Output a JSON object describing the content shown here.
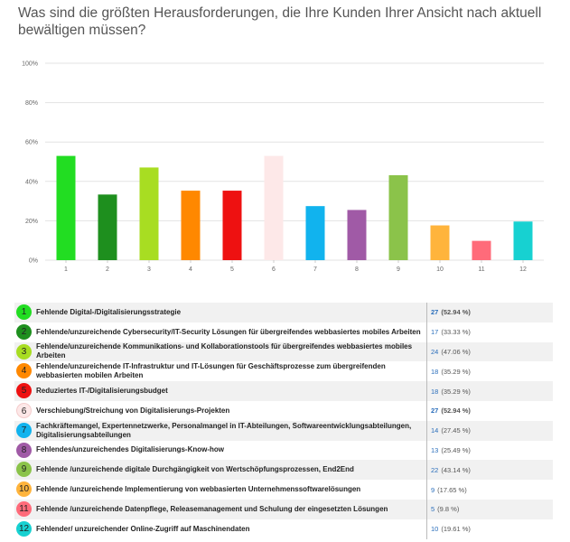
{
  "title": "Was sind die größten Herausforderungen, die Ihre Kunden Ihrer Ansicht nach aktuell bewältigen müssen?",
  "chart_data": {
    "type": "bar",
    "categories": [
      "1",
      "2",
      "3",
      "4",
      "5",
      "6",
      "7",
      "8",
      "9",
      "10",
      "11",
      "12"
    ],
    "values": [
      52.94,
      33.33,
      47.06,
      35.29,
      35.29,
      52.94,
      27.45,
      25.49,
      43.14,
      17.65,
      9.8,
      19.61
    ],
    "colors": [
      "#22dd22",
      "#1e8f1e",
      "#a8dd22",
      "#ff8800",
      "#ee1111",
      "#fde8e8",
      "#11b3ee",
      "#a05aa6",
      "#8bc34a",
      "#ffb43c",
      "#ff6b7a",
      "#17d1d1"
    ],
    "ylim": [
      0,
      100
    ],
    "yticks": [
      "0%",
      "20%",
      "40%",
      "60%",
      "80%",
      "100%"
    ],
    "ytick_values": [
      0,
      20,
      40,
      60,
      80,
      100
    ],
    "grid": true
  },
  "legend": [
    {
      "num": "1",
      "label": "Fehlende Digital-/Digitalisierungsstrategie",
      "count": "27",
      "pct": "(52.94 %)",
      "bold": true
    },
    {
      "num": "2",
      "label": "Fehlende/unzureichende Cybersecurity/IT-Security Lösungen für übergreifendes webbasiertes mobiles Arbeiten",
      "count": "17",
      "pct": "(33.33 %)",
      "bold": false
    },
    {
      "num": "3",
      "label": "Fehlende/unzureichende Kommunikations- und Kollaborationstools für übergreifendes webbasiertes mobiles Arbeiten",
      "count": "24",
      "pct": "(47.06 %)",
      "bold": false
    },
    {
      "num": "4",
      "label": "Fehlende/unzureichende IT-Infrastruktur und IT-Lösungen für Geschäftsprozesse zum übergreifenden webbasierten mobilen Arbeiten",
      "count": "18",
      "pct": "(35.29 %)",
      "bold": false
    },
    {
      "num": "5",
      "label": "Reduziertes IT-/Digitalisierungsbudget",
      "count": "18",
      "pct": "(35.29 %)",
      "bold": false
    },
    {
      "num": "6",
      "label": "Verschiebung/Streichung von Digitalisierungs-Projekten",
      "count": "27",
      "pct": "(52.94 %)",
      "bold": true
    },
    {
      "num": "7",
      "label": "Fachkräftemangel, Expertennetzwerke, Personalmangel in IT-Abteilungen, Softwareentwicklungsabteilungen, Digitalisierungsabteilungen",
      "count": "14",
      "pct": "(27.45 %)",
      "bold": false
    },
    {
      "num": "8",
      "label": "Fehlendes/unzureichendes Digitalisierungs-Know-how",
      "count": "13",
      "pct": "(25.49 %)",
      "bold": false
    },
    {
      "num": "9",
      "label": "Fehlende /unzureichende digitale Durchgängigkeit von Wertschöpfungsprozessen, End2End",
      "count": "22",
      "pct": "(43.14 %)",
      "bold": false
    },
    {
      "num": "10",
      "label": "Fehlende /unzureichende Implementierung von webbasierten Unternehmenssoftwarelösungen",
      "count": "9",
      "pct": "(17.65 %)",
      "bold": false
    },
    {
      "num": "11",
      "label": "Fehlende /unzureichende Datenpflege, Releasemanagement und Schulung der eingesetzten Lösungen",
      "count": "5",
      "pct": "(9.8 %)",
      "bold": false
    },
    {
      "num": "12",
      "label": "Fehlender/ unzureichender Online-Zugriff auf Maschinendaten",
      "count": "10",
      "pct": "(19.61 %)",
      "bold": false
    }
  ]
}
